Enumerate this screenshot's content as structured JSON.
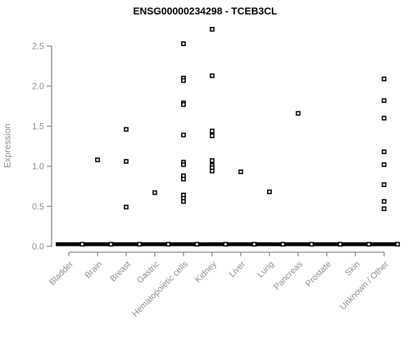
{
  "chart_data": {
    "type": "scatter",
    "title": "ENSG00000234298 - TCEB3CL",
    "ylabel": "Expression",
    "xlabel": "",
    "ylim": [
      0,
      2.75
    ],
    "yticks": [
      0.0,
      0.5,
      1.0,
      1.5,
      2.0,
      2.5
    ],
    "grid": false,
    "legend": false,
    "marker": "open-square",
    "categories": [
      "Bladder",
      "Brain",
      "Breast",
      "Gastric",
      "Hematopoietic cells",
      "Kidney",
      "Liver",
      "Lung",
      "Pancreas",
      "Prostate",
      "Skin",
      "Unknown / Other"
    ],
    "series": [
      {
        "category": "Bladder",
        "values": [],
        "zero_cluster": true
      },
      {
        "category": "Brain",
        "values": [
          1.08
        ],
        "zero_cluster": true
      },
      {
        "category": "Breast",
        "values": [
          1.46,
          1.06,
          0.49
        ],
        "zero_cluster": true
      },
      {
        "category": "Gastric",
        "values": [
          0.67
        ],
        "zero_cluster": true
      },
      {
        "category": "Hematopoietic cells",
        "values": [
          2.53,
          2.1,
          2.07,
          1.79,
          1.77,
          1.39,
          1.05,
          1.02,
          0.88,
          0.84,
          0.64,
          0.6,
          0.56
        ],
        "zero_cluster": true
      },
      {
        "category": "Kidney",
        "values": [
          2.71,
          2.13,
          1.44,
          1.38,
          1.07,
          1.01,
          0.98,
          0.94
        ],
        "zero_cluster": true
      },
      {
        "category": "Liver",
        "values": [
          0.93
        ],
        "zero_cluster": true
      },
      {
        "category": "Lung",
        "values": [
          0.68
        ],
        "zero_cluster": true
      },
      {
        "category": "Pancreas",
        "values": [
          1.66
        ],
        "zero_cluster": true
      },
      {
        "category": "Prostate",
        "values": [],
        "zero_cluster": true
      },
      {
        "category": "Skin",
        "values": [],
        "zero_cluster": true
      },
      {
        "category": "Unknown / Other",
        "values": [
          2.09,
          1.82,
          1.6,
          1.18,
          1.02,
          0.77,
          0.56,
          0.47
        ],
        "zero_cluster": true
      }
    ],
    "colors": {
      "points": "#000000",
      "axis": "#8c8c8c",
      "tick_text": "#8c8c8c",
      "title": "#000000",
      "background": "#ffffff"
    }
  }
}
